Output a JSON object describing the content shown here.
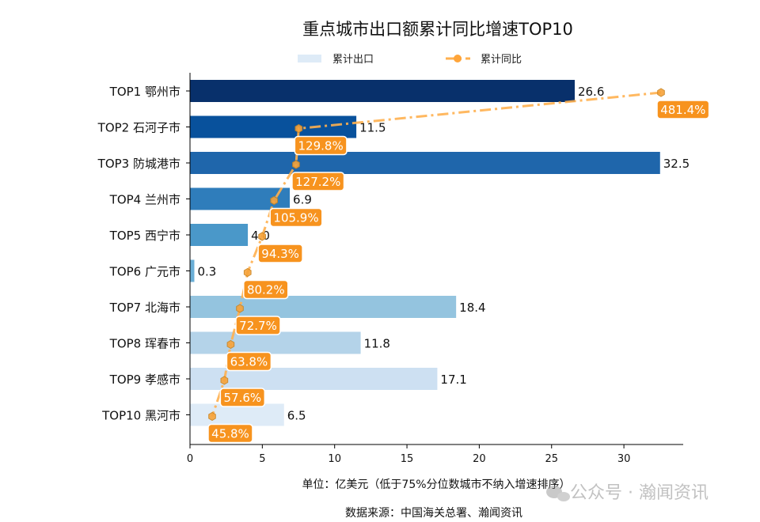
{
  "chart_data": {
    "type": "bar",
    "orientation": "horizontal",
    "title": "重点城市出口额累计同比增速TOP10",
    "categories": [
      "TOP1 鄂州市",
      "TOP2 石河子市",
      "TOP3 防城港市",
      "TOP4 兰州市",
      "TOP5 西宁市",
      "TOP6 广元市",
      "TOP7 北海市",
      "TOP8 珲春市",
      "TOP9 孝感市",
      "TOP10 黑河市"
    ],
    "series": [
      {
        "name": "累计出口",
        "type": "bar",
        "values": [
          26.6,
          11.5,
          32.5,
          6.9,
          4.0,
          0.3,
          18.4,
          11.8,
          17.1,
          6.5
        ],
        "labels": [
          "26.6",
          "11.5",
          "32.5",
          "6.9",
          "4.0",
          "0.3",
          "18.4",
          "11.8",
          "17.1",
          "6.5"
        ],
        "colors": [
          "#08306b",
          "#08519c",
          "#1f66ab",
          "#2f7dbb",
          "#4a98c9",
          "#6aaed6",
          "#94c4df",
          "#b4d3e9",
          "#cde0f2",
          "#deebf7"
        ]
      },
      {
        "name": "累计同比",
        "type": "line",
        "values": [
          481.4,
          129.8,
          127.2,
          105.9,
          94.3,
          80.2,
          72.7,
          63.8,
          57.6,
          45.8
        ],
        "labels": [
          "481.4%",
          "129.8%",
          "127.2%",
          "105.9%",
          "94.3%",
          "80.2%",
          "72.7%",
          "63.8%",
          "57.6%",
          "45.8%"
        ],
        "color": "#ffb04f",
        "label_color": "#f7931e",
        "secondary_xlim": [
          24.3,
          502.9
        ]
      }
    ],
    "xlim": [
      0,
      34.1
    ],
    "xticks": [
      "0",
      "5",
      "10",
      "15",
      "20",
      "25",
      "30"
    ],
    "xlabel": "单位：亿美元（低于75%分位数城市不纳入增速排序）",
    "source": "数据来源：中国海关总署、瀚闻资讯",
    "legend_position": "top-center",
    "grid": false
  },
  "watermark": "公众号 · 瀚闻资讯"
}
